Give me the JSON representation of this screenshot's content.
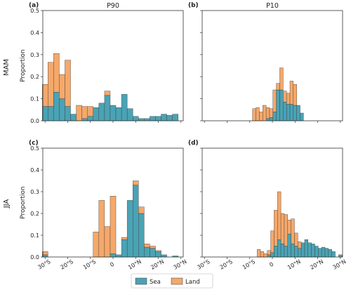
{
  "colors": {
    "sea": "#4aa3b5",
    "land": "#f5a86a",
    "edge": "#3a3a3a"
  },
  "legend": {
    "placement": "bottom-center",
    "items": [
      {
        "label": "Sea",
        "color": "#4aa3b5"
      },
      {
        "label": "Land",
        "color": "#f5a86a"
      }
    ]
  },
  "row_labels": [
    "MAM",
    "JJA"
  ],
  "chart_data": [
    {
      "type": "bar",
      "stacked": true,
      "panel_label": "(a)",
      "title": "P90",
      "ylabel": "Proportion",
      "ylim": [
        0,
        0.5
      ],
      "yticks": [
        "0.5",
        "0.4",
        "0.3",
        "0.2",
        "0.1",
        "0.0"
      ],
      "xlim": [
        -31,
        31
      ],
      "x": [
        -30,
        -27.5,
        -25,
        -22.5,
        -20,
        -17.5,
        -15,
        -12.5,
        -10,
        -7.5,
        -5,
        -2.5,
        0,
        2.5,
        5,
        7.5,
        10,
        12.5,
        15,
        17.5,
        20,
        22.5,
        25,
        27.5,
        30
      ],
      "series": [
        {
          "name": "Sea",
          "values": [
            0.065,
            0.065,
            0.13,
            0.1,
            0.065,
            0.03,
            0,
            0.01,
            0.02,
            0.06,
            0.08,
            0.115,
            0.07,
            0.06,
            0.12,
            0.055,
            0.02,
            0.01,
            0.01,
            0.02,
            0.02,
            0.03,
            0.025,
            0.03,
            0
          ]
        },
        {
          "name": "Land",
          "values": [
            0.1,
            0.2,
            0.175,
            0.11,
            0.21,
            0,
            0.07,
            0.055,
            0.045,
            0,
            0,
            0.02,
            0,
            0,
            0,
            0,
            0,
            0,
            0,
            0,
            0,
            0,
            0,
            0,
            0
          ]
        }
      ]
    },
    {
      "type": "bar",
      "stacked": true,
      "panel_label": "(b)",
      "title": "P10",
      "ylabel": "",
      "ylim": [
        0,
        0.5
      ],
      "yticks": [],
      "xlim": [
        -31,
        31
      ],
      "x": [
        -8,
        -6.5,
        -5,
        -3.5,
        -2,
        -0.5,
        1,
        2.5,
        4,
        5.5,
        7,
        8.5,
        10,
        11.5,
        13
      ],
      "series": [
        {
          "name": "Sea",
          "values": [
            0,
            0,
            0,
            0,
            0.01,
            0.015,
            0.04,
            0.14,
            0.14,
            0.085,
            0.075,
            0.075,
            0.07,
            0.07,
            0.035
          ]
        },
        {
          "name": "Land",
          "values": [
            0.055,
            0.06,
            0.04,
            0.07,
            0.05,
            0.04,
            0.1,
            0.03,
            0.1,
            0.05,
            0.05,
            0.105,
            0.095,
            0,
            0
          ]
        }
      ]
    },
    {
      "type": "bar",
      "stacked": true,
      "panel_label": "(c)",
      "title": "",
      "ylabel": "Proportion",
      "ylim": [
        0,
        0.5
      ],
      "yticks": [
        "0.5",
        "0.4",
        "0.3",
        "0.2",
        "0.1",
        "0.0"
      ],
      "xlim": [
        -31,
        31
      ],
      "x": [
        -30,
        -27.5,
        -25,
        -22.5,
        -20,
        -17.5,
        -15,
        -12.5,
        -10,
        -7.5,
        -5,
        -2.5,
        0,
        2.5,
        5,
        7.5,
        10,
        12.5,
        15,
        17.5,
        20,
        22.5,
        25,
        27.5,
        30
      ],
      "series": [
        {
          "name": "Sea",
          "values": [
            0.01,
            0,
            0,
            0,
            0,
            0,
            0,
            0,
            0,
            0,
            0,
            0,
            0.015,
            0.01,
            0.08,
            0.26,
            0.33,
            0.2,
            0.045,
            0.04,
            0.025,
            0.01,
            0,
            0.005,
            0
          ]
        },
        {
          "name": "Land",
          "values": [
            0.015,
            0,
            0,
            0,
            0,
            0,
            0,
            0,
            0,
            0.115,
            0.26,
            0.14,
            0.265,
            0,
            0.01,
            0,
            0.02,
            0.03,
            0.015,
            0.01,
            0.005,
            0,
            0,
            0,
            0
          ]
        }
      ]
    },
    {
      "type": "bar",
      "stacked": true,
      "panel_label": "(d)",
      "title": "",
      "ylabel": "",
      "ylim": [
        0,
        0.5
      ],
      "yticks": [],
      "xlim": [
        -31,
        31
      ],
      "x": [
        -6,
        -4.5,
        -3,
        -1.5,
        0,
        1.5,
        3,
        4.5,
        6,
        7.5,
        9,
        10.5,
        12,
        13.5,
        15,
        16.5,
        18,
        19.5,
        21,
        22.5,
        24,
        25.5,
        27,
        28.5,
        30
      ],
      "series": [
        {
          "name": "Sea",
          "values": [
            0,
            0,
            0,
            0.01,
            0.02,
            0.05,
            0.08,
            0.06,
            0.05,
            0.105,
            0.06,
            0.05,
            0.04,
            0.065,
            0.08,
            0.065,
            0.06,
            0.05,
            0.04,
            0.045,
            0.04,
            0.035,
            0.025,
            0,
            0.01
          ]
        },
        {
          "name": "Land",
          "values": [
            0.035,
            0.025,
            0.015,
            0.02,
            0.1,
            0.165,
            0.22,
            0.14,
            0.145,
            0.065,
            0.115,
            0.06,
            0.03,
            0,
            0,
            0,
            0,
            0,
            0,
            0,
            0,
            0,
            0,
            0,
            0
          ]
        }
      ]
    }
  ],
  "shared_xticks": [
    "30°S",
    "20°S",
    "10°S",
    "0",
    "10°N",
    "20°N",
    "30°N"
  ]
}
